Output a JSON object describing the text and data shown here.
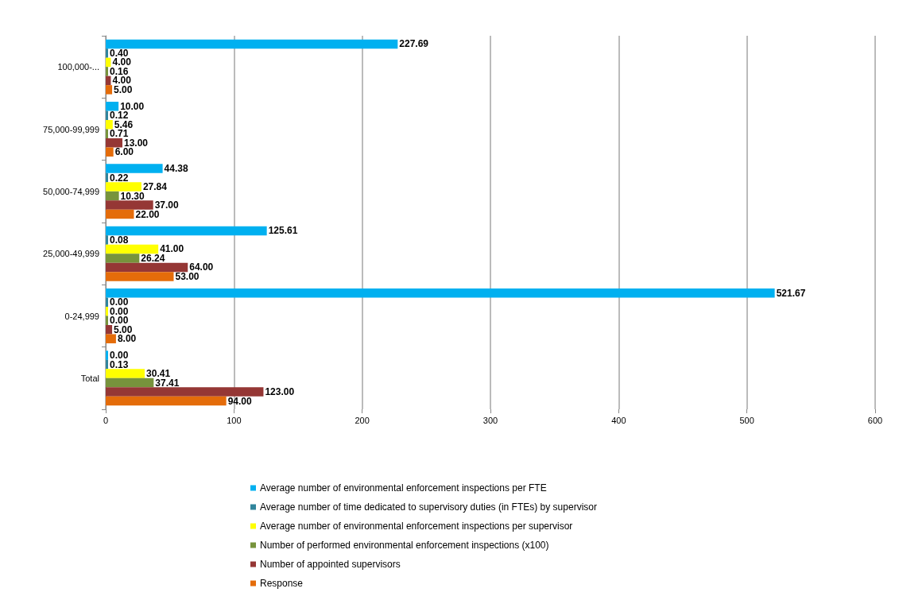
{
  "chart_data": {
    "type": "bar",
    "orientation": "horizontal",
    "categories": [
      "100,000-...",
      "75,000-99,999",
      "50,000-74,999",
      "25,000-49,999",
      "0-24,999",
      "Total"
    ],
    "series": [
      {
        "name": "Average number of environmental enforcement inspections per FTE",
        "color": "#00b0f0",
        "values": [
          227.69,
          10.0,
          44.38,
          125.61,
          521.67,
          0.0
        ],
        "value_labels": [
          "227.69",
          "10.00",
          "44.38",
          "125.61",
          "521.67",
          "0.00"
        ]
      },
      {
        "name": "Average number of time dedicated to supervisory duties (in FTEs) by supervisor",
        "color": "#31859c",
        "values": [
          0.4,
          0.12,
          0.22,
          0.08,
          0.0,
          0.13
        ],
        "value_labels": [
          "0.40",
          "0.12",
          "0.22",
          "0.08",
          "0.00",
          "0.13"
        ]
      },
      {
        "name": "Average number of environmental enforcement inspections per supervisor",
        "color": "#ffff00",
        "values": [
          4.0,
          5.46,
          27.84,
          41.0,
          0.0,
          30.41
        ],
        "value_labels": [
          "4.00",
          "5.46",
          "27.84",
          "41.00",
          "0.00",
          "30.41"
        ]
      },
      {
        "name": "Number of performed environmental enforcement inspections (x100)",
        "color": "#77933c",
        "values": [
          0.16,
          0.71,
          10.3,
          26.24,
          0.0,
          37.41
        ],
        "value_labels": [
          "0.16",
          "0.71",
          "10.30",
          "26.24",
          "0.00",
          "37.41"
        ]
      },
      {
        "name": "Number of appointed supervisors",
        "color": "#953735",
        "values": [
          4.0,
          13.0,
          37.0,
          64.0,
          5.0,
          123.0
        ],
        "value_labels": [
          "4.00",
          "13.00",
          "37.00",
          "64.00",
          "5.00",
          "123.00"
        ]
      },
      {
        "name": "Response",
        "color": "#e46c0a",
        "values": [
          5.0,
          6.0,
          22.0,
          53.0,
          8.0,
          94.0
        ],
        "value_labels": [
          "5.00",
          "6.00",
          "22.00",
          "53.00",
          "8.00",
          "94.00"
        ]
      }
    ],
    "xlim": [
      0,
      600
    ],
    "xticks": [
      0,
      100,
      200,
      300,
      400,
      500,
      600
    ],
    "grid": "x",
    "legend": "bottom"
  }
}
